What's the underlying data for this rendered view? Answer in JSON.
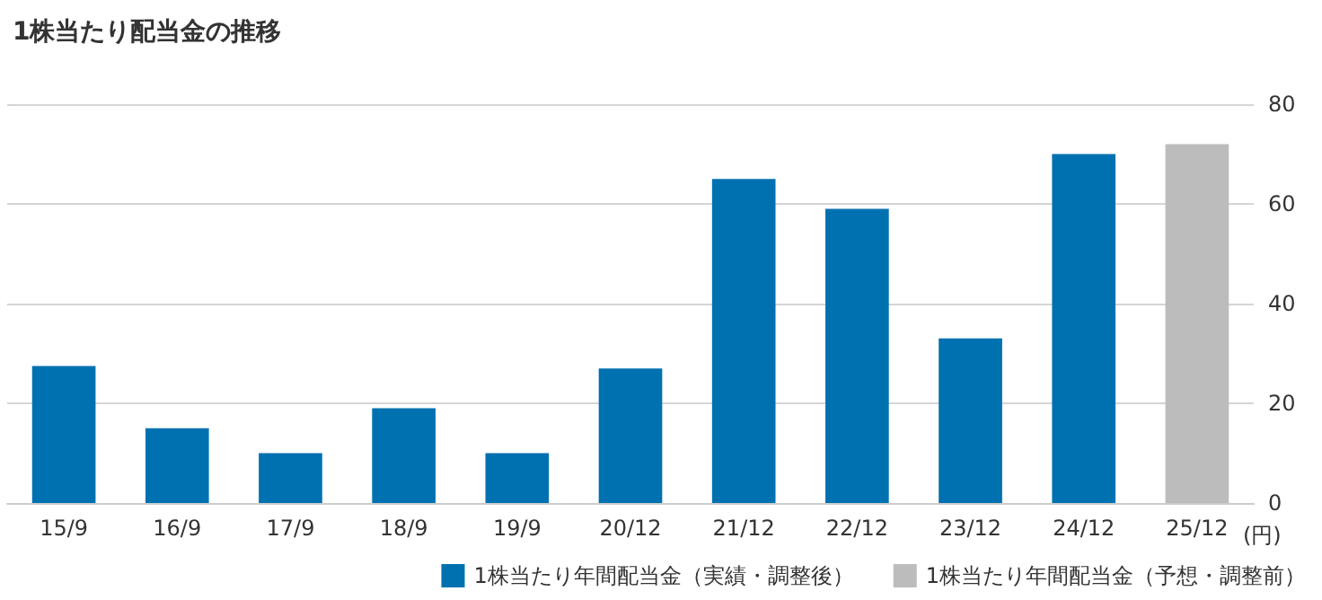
{
  "chart_data": {
    "type": "bar",
    "title": "1株当たり配当金の推移",
    "ylabel": "(円)",
    "categories": [
      "15/9",
      "16/9",
      "17/9",
      "18/9",
      "19/9",
      "20/12",
      "21/12",
      "22/12",
      "23/12",
      "24/12",
      "25/12"
    ],
    "series": [
      {
        "name": "1株当たり年間配当金（実績・調整後）",
        "color": "#0071b0",
        "values": [
          27.5,
          15,
          10,
          19,
          10,
          27,
          65,
          59,
          33,
          70,
          null
        ]
      },
      {
        "name": "1株当たり年間配当金（予想・調整前）",
        "color": "#bcbcbc",
        "values": [
          null,
          null,
          null,
          null,
          null,
          null,
          null,
          null,
          null,
          null,
          72
        ]
      }
    ],
    "ylim": [
      0,
      80
    ],
    "yticks": [
      0,
      20,
      40,
      60,
      80
    ],
    "grid": "y",
    "legend": "bottom"
  }
}
